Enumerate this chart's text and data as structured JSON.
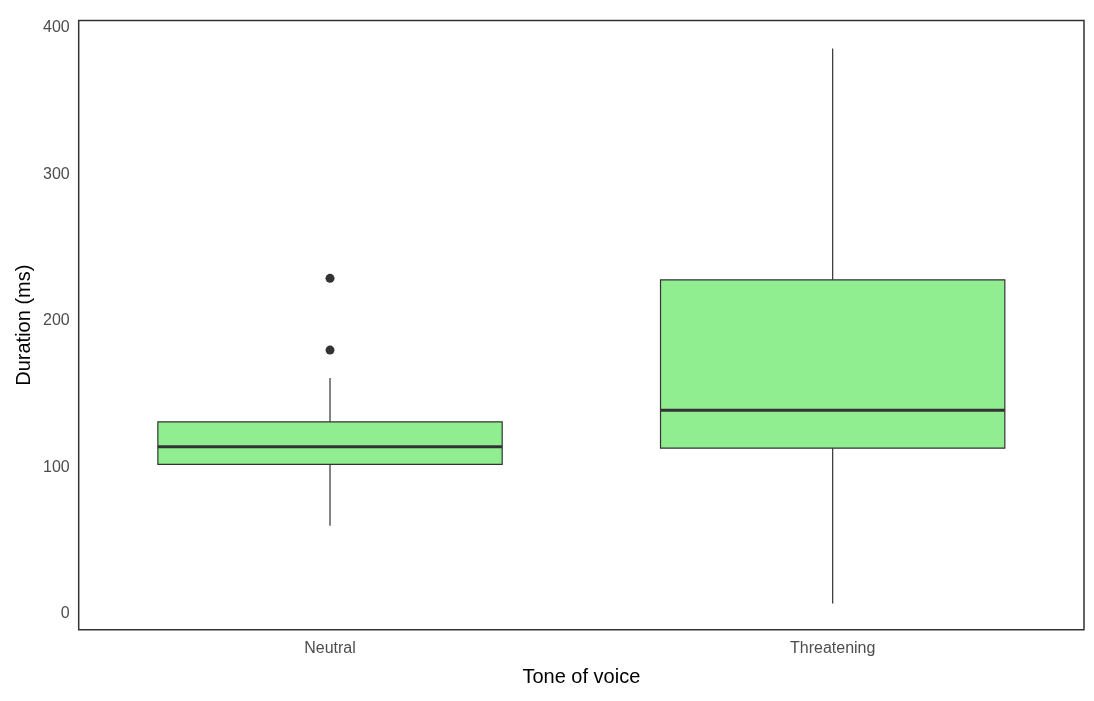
{
  "chart_data": {
    "type": "box",
    "xlabel": "Tone of voice",
    "ylabel": "Duration (ms)",
    "categories": [
      "Neutral",
      "Threatening"
    ],
    "color": "#90ee90",
    "boxes": [
      {
        "low": 60,
        "q1": 102,
        "median": 114,
        "q3": 131,
        "high": 161,
        "outliers": [
          180,
          229
        ]
      },
      {
        "low": 7,
        "q1": 113,
        "median": 139,
        "q3": 228,
        "high": 386
      }
    ],
    "ylim": [
      -11,
      405
    ],
    "yticks": [
      0,
      100,
      200,
      300,
      400
    ],
    "grid": false
  }
}
